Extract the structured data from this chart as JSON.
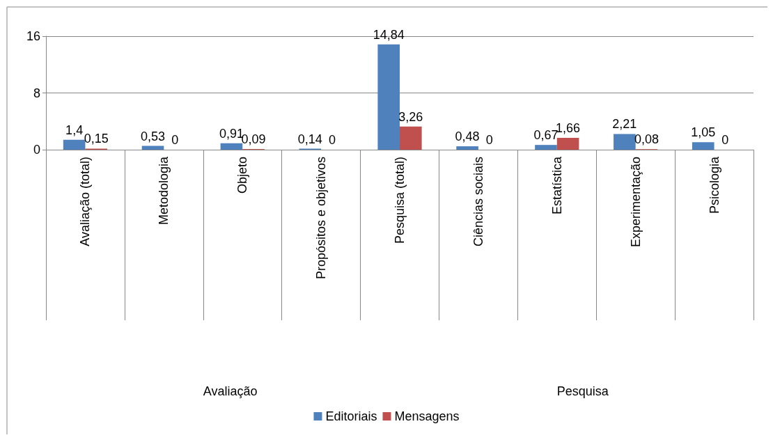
{
  "chart_data": {
    "type": "bar",
    "categories": [
      "Avaliação (total)",
      "Metodologia",
      "Objeto",
      "Propósitos e objetivos",
      "Pesquisa (total)",
      "Ciências sociais",
      "Estatística",
      "Experimentação",
      "Psicologia"
    ],
    "series": [
      {
        "name": "Editoriais",
        "color": "#4f81bd",
        "values": [
          1.4,
          0.53,
          0.91,
          0.14,
          14.84,
          0.48,
          0.67,
          2.21,
          1.05
        ],
        "value_labels": [
          "1,4",
          "0,53",
          "0,91",
          "0,14",
          "14,84",
          "0,48",
          "0,67",
          "2,21",
          "1,05"
        ]
      },
      {
        "name": "Mensagens",
        "color": "#c0504d",
        "values": [
          0.15,
          0,
          0.09,
          0,
          3.26,
          0,
          1.66,
          0.08,
          0
        ],
        "value_labels": [
          "0,15",
          "0",
          "0,09",
          "0",
          "3,26",
          "0",
          "1,66",
          "0,08",
          "0"
        ]
      }
    ],
    "annotations": [
      "Avaliação",
      "Pesquisa"
    ],
    "ylim": [
      0,
      16
    ],
    "yticks": [
      0,
      8,
      16
    ],
    "grid": "y",
    "legend": "bottom"
  }
}
